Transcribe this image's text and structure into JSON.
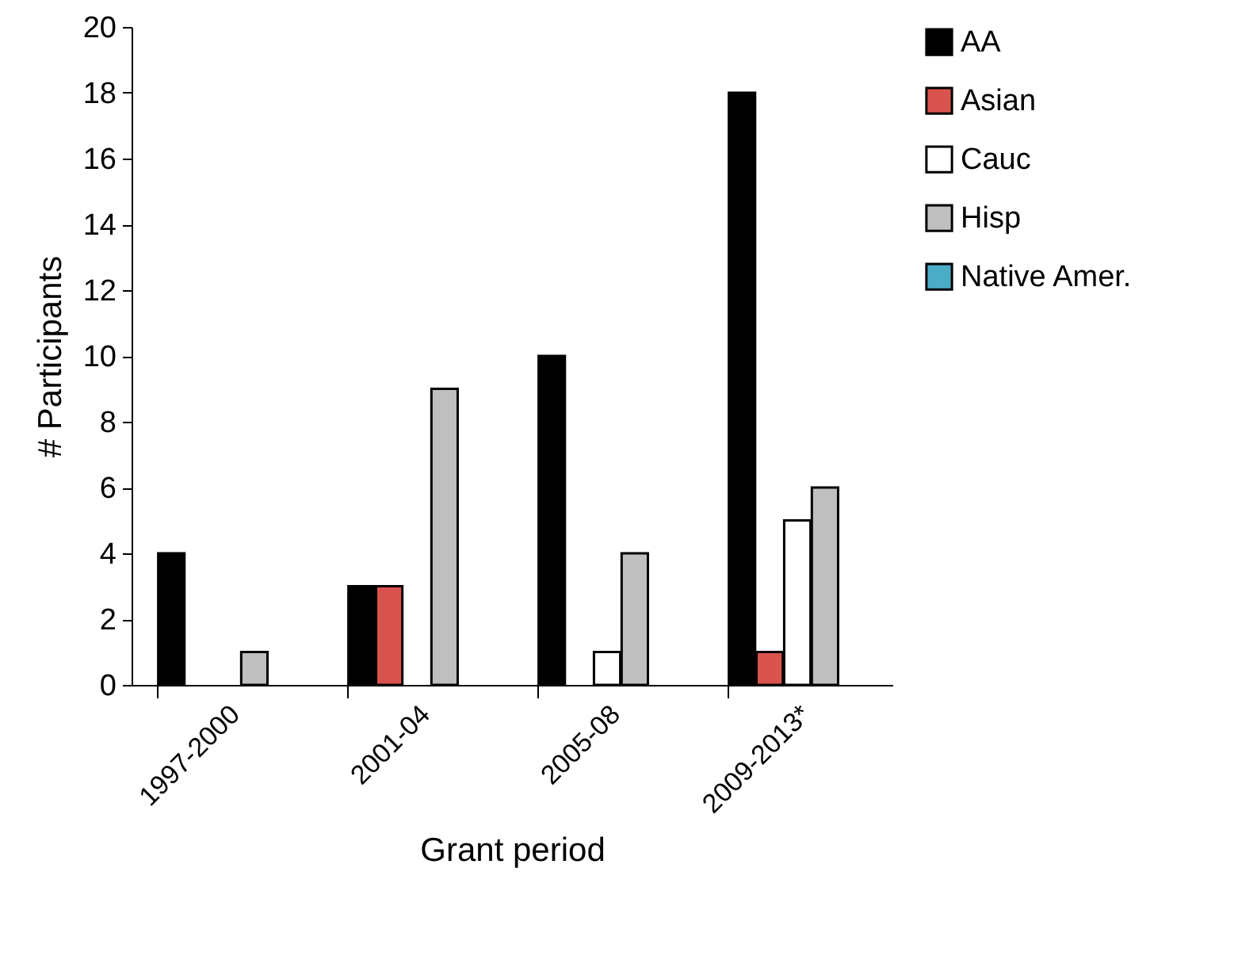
{
  "chart_data": {
    "type": "bar",
    "xlabel": "Grant period",
    "ylabel": "# Participants",
    "categories": [
      "1997-2000",
      "2001-04",
      "2005-08",
      "2009-2013*"
    ],
    "series": [
      {
        "name": "AA",
        "color": "#000000",
        "values": [
          4,
          3,
          10,
          18
        ]
      },
      {
        "name": "Asian",
        "color": "#d9534f",
        "values": [
          0,
          3,
          0,
          1
        ]
      },
      {
        "name": "Cauc",
        "color": "#ffffff",
        "values": [
          0,
          0,
          1,
          5
        ]
      },
      {
        "name": "Hisp",
        "color": "#bfbfbf",
        "values": [
          1,
          9,
          4,
          6
        ]
      },
      {
        "name": "Native Amer.",
        "color": "#4bacc6",
        "values": [
          0,
          0,
          0,
          0
        ]
      }
    ],
    "ylim": [
      0,
      20
    ],
    "yticks": [
      0,
      2,
      4,
      6,
      8,
      10,
      12,
      14,
      16,
      18,
      20
    ],
    "grid": false,
    "legend": "right"
  }
}
